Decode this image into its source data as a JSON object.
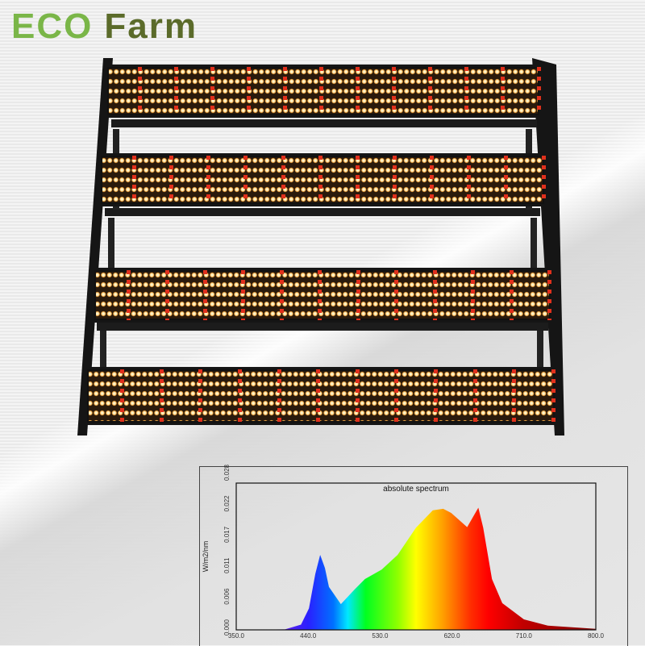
{
  "brand": {
    "logo_eco": "ECO",
    "logo_farm": "Farm",
    "colors": {
      "eco": "#7ab648",
      "farm": "#5b6b2a"
    }
  },
  "product": {
    "name": "LED grow light bar fixture",
    "bar_count": 4
  },
  "chart_data": {
    "type": "area",
    "title": "absolute spectrum",
    "xlabel": "",
    "ylabel": "W/m2/nm",
    "xlim": [
      350,
      800
    ],
    "ylim": [
      0,
      0.028
    ],
    "x_ticks": [
      "350.0",
      "440.0",
      "530.0",
      "620.0",
      "710.0",
      "800.0"
    ],
    "y_ticks": [
      "0.000",
      "0.006",
      "0.011",
      "0.017",
      "0.022",
      "0.028"
    ],
    "grid": false,
    "fill": "spectral gradient",
    "x": [
      350,
      411,
      431,
      441,
      449,
      455,
      461,
      466,
      481,
      498,
      511,
      532,
      552,
      575,
      596,
      609,
      619,
      639,
      648,
      653,
      659,
      670,
      683,
      710,
      740,
      800
    ],
    "y": [
      0,
      0.0001,
      0.001,
      0.0041,
      0.0107,
      0.0143,
      0.0118,
      0.0082,
      0.0049,
      0.0077,
      0.0097,
      0.0115,
      0.0143,
      0.0195,
      0.0228,
      0.0231,
      0.0223,
      0.0196,
      0.022,
      0.0233,
      0.0195,
      0.0097,
      0.0051,
      0.002,
      0.0008,
      0.0002
    ]
  }
}
